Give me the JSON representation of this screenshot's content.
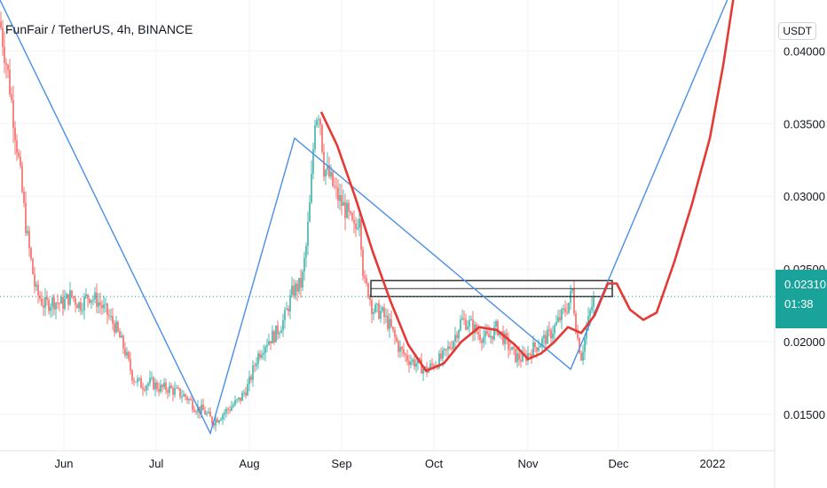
{
  "header": {
    "title": "FunFair / TetherUS, 4h, BINANCE",
    "currency": "USDT"
  },
  "price_badge": {
    "price": "0.02310",
    "countdown": "01:38"
  },
  "colors": {
    "up": "#26a69a",
    "down": "#ef5350",
    "blue_line": "#4a8fe7",
    "red_curve": "#e53935",
    "dotted_line": "#1aa39a",
    "badge": "#1aa39a"
  },
  "chart_data": {
    "type": "line",
    "symbol": "FunFair / TetherUS",
    "interval": "4h",
    "exchange": "BINANCE",
    "ylim": [
      0.0125,
      0.0435
    ],
    "yticks": [
      "0.01500",
      "0.02000",
      "0.02500",
      "0.03000",
      "0.03500",
      "0.04000"
    ],
    "ytick_values": [
      0.015,
      0.02,
      0.025,
      0.03,
      0.035,
      0.04
    ],
    "xticks": [
      "Jun",
      "Jul",
      "Aug",
      "Sep",
      "Oct",
      "Nov",
      "Dec",
      "2022"
    ],
    "last_price": 0.0231,
    "price_path": [
      [
        0,
        0.042
      ],
      [
        10,
        0.038
      ],
      [
        20,
        0.033
      ],
      [
        30,
        0.0275
      ],
      [
        40,
        0.0235
      ],
      [
        50,
        0.0225
      ],
      [
        60,
        0.0228
      ],
      [
        70,
        0.0226
      ],
      [
        80,
        0.0232
      ],
      [
        90,
        0.0225
      ],
      [
        100,
        0.0232
      ],
      [
        110,
        0.0228
      ],
      [
        120,
        0.022
      ],
      [
        130,
        0.021
      ],
      [
        140,
        0.0195
      ],
      [
        150,
        0.0175
      ],
      [
        160,
        0.017
      ],
      [
        170,
        0.0172
      ],
      [
        180,
        0.0168
      ],
      [
        190,
        0.0168
      ],
      [
        200,
        0.0165
      ],
      [
        210,
        0.0162
      ],
      [
        220,
        0.0155
      ],
      [
        230,
        0.0152
      ],
      [
        240,
        0.0145
      ],
      [
        250,
        0.015
      ],
      [
        260,
        0.0155
      ],
      [
        270,
        0.016
      ],
      [
        280,
        0.017
      ],
      [
        290,
        0.019
      ],
      [
        300,
        0.02
      ],
      [
        310,
        0.0205
      ],
      [
        320,
        0.0215
      ],
      [
        330,
        0.0235
      ],
      [
        340,
        0.024
      ],
      [
        345,
        0.0265
      ],
      [
        350,
        0.03
      ],
      [
        355,
        0.0355
      ],
      [
        360,
        0.036
      ],
      [
        365,
        0.032
      ],
      [
        370,
        0.0315
      ],
      [
        380,
        0.03
      ],
      [
        390,
        0.029
      ],
      [
        400,
        0.0275
      ],
      [
        405,
        0.029
      ],
      [
        410,
        0.024
      ],
      [
        415,
        0.0235
      ],
      [
        420,
        0.0222
      ],
      [
        430,
        0.022
      ],
      [
        440,
        0.021
      ],
      [
        450,
        0.0195
      ],
      [
        460,
        0.0188
      ],
      [
        470,
        0.0185
      ],
      [
        480,
        0.018
      ],
      [
        490,
        0.0185
      ],
      [
        500,
        0.019
      ],
      [
        510,
        0.02
      ],
      [
        520,
        0.0215
      ],
      [
        530,
        0.0212
      ],
      [
        540,
        0.0205
      ],
      [
        550,
        0.0202
      ],
      [
        560,
        0.021
      ],
      [
        570,
        0.02
      ],
      [
        580,
        0.019
      ],
      [
        590,
        0.0188
      ],
      [
        600,
        0.0195
      ],
      [
        610,
        0.02
      ],
      [
        620,
        0.0205
      ],
      [
        630,
        0.0215
      ],
      [
        640,
        0.0225
      ],
      [
        645,
        0.0235
      ],
      [
        650,
        0.0205
      ],
      [
        655,
        0.019
      ],
      [
        660,
        0.0205
      ],
      [
        665,
        0.022
      ],
      [
        670,
        0.0231
      ]
    ],
    "blue_path": [
      [
        0,
        0.0435
      ],
      [
        237,
        0.0137
      ],
      [
        332,
        0.034
      ],
      [
        643,
        0.0181
      ],
      [
        830,
        0.045
      ]
    ],
    "red_path": [
      [
        362,
        0.0358
      ],
      [
        380,
        0.0335
      ],
      [
        400,
        0.03
      ],
      [
        420,
        0.0262
      ],
      [
        440,
        0.0228
      ],
      [
        460,
        0.0198
      ],
      [
        480,
        0.018
      ],
      [
        500,
        0.0185
      ],
      [
        520,
        0.02
      ],
      [
        540,
        0.021
      ],
      [
        560,
        0.0208
      ],
      [
        580,
        0.0198
      ],
      [
        595,
        0.0188
      ],
      [
        610,
        0.0192
      ],
      [
        625,
        0.02
      ],
      [
        640,
        0.021
      ],
      [
        655,
        0.0206
      ],
      [
        670,
        0.0218
      ],
      [
        685,
        0.024
      ],
      [
        695,
        0.024
      ],
      [
        710,
        0.0222
      ],
      [
        725,
        0.0215
      ],
      [
        740,
        0.022
      ],
      [
        760,
        0.0255
      ],
      [
        780,
        0.0295
      ],
      [
        800,
        0.034
      ],
      [
        815,
        0.039
      ],
      [
        830,
        0.045
      ]
    ],
    "resistance_band": [
      0.0231,
      0.0242
    ],
    "resistance_x": [
      418,
      690
    ]
  }
}
